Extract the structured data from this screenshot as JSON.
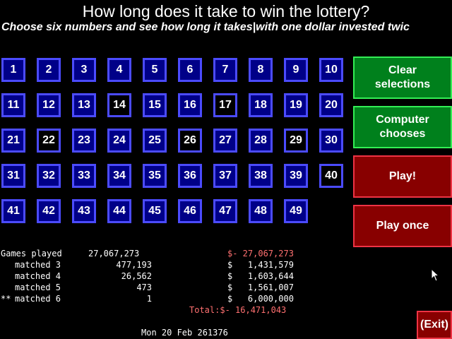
{
  "header": {
    "title": "How long does it take to win the lottery?",
    "subtitle": "Choose six numbers and see how long it takes|with one dollar invested twic"
  },
  "numbers": [
    {
      "label": "1",
      "selected": false
    },
    {
      "label": "2",
      "selected": false
    },
    {
      "label": "3",
      "selected": false
    },
    {
      "label": "4",
      "selected": false
    },
    {
      "label": "5",
      "selected": false
    },
    {
      "label": "6",
      "selected": false
    },
    {
      "label": "7",
      "selected": false
    },
    {
      "label": "8",
      "selected": false
    },
    {
      "label": "9",
      "selected": false
    },
    {
      "label": "10",
      "selected": false
    },
    {
      "label": "11",
      "selected": false
    },
    {
      "label": "12",
      "selected": false
    },
    {
      "label": "13",
      "selected": false
    },
    {
      "label": "14",
      "selected": true
    },
    {
      "label": "15",
      "selected": false
    },
    {
      "label": "16",
      "selected": false
    },
    {
      "label": "17",
      "selected": true
    },
    {
      "label": "18",
      "selected": false
    },
    {
      "label": "19",
      "selected": false
    },
    {
      "label": "20",
      "selected": false
    },
    {
      "label": "21",
      "selected": false
    },
    {
      "label": "22",
      "selected": true
    },
    {
      "label": "23",
      "selected": false
    },
    {
      "label": "24",
      "selected": false
    },
    {
      "label": "25",
      "selected": false
    },
    {
      "label": "26",
      "selected": true
    },
    {
      "label": "27",
      "selected": false
    },
    {
      "label": "28",
      "selected": false
    },
    {
      "label": "29",
      "selected": true
    },
    {
      "label": "30",
      "selected": false
    },
    {
      "label": "31",
      "selected": false
    },
    {
      "label": "32",
      "selected": false
    },
    {
      "label": "33",
      "selected": false
    },
    {
      "label": "34",
      "selected": false
    },
    {
      "label": "35",
      "selected": false
    },
    {
      "label": "36",
      "selected": false
    },
    {
      "label": "37",
      "selected": false
    },
    {
      "label": "38",
      "selected": false
    },
    {
      "label": "39",
      "selected": false
    },
    {
      "label": "40",
      "selected": true
    },
    {
      "label": "41",
      "selected": false
    },
    {
      "label": "42",
      "selected": false
    },
    {
      "label": "43",
      "selected": false
    },
    {
      "label": "44",
      "selected": false
    },
    {
      "label": "45",
      "selected": false
    },
    {
      "label": "46",
      "selected": false
    },
    {
      "label": "47",
      "selected": false
    },
    {
      "label": "48",
      "selected": false
    },
    {
      "label": "49",
      "selected": false
    }
  ],
  "buttons": {
    "clear": {
      "line1": "Clear",
      "line2": "selections"
    },
    "computer": {
      "line1": "Computer",
      "line2": "chooses"
    },
    "play": "Play!",
    "play_once": "Play once",
    "exit": "(Exit)"
  },
  "stats": {
    "games_played": {
      "label": "Games played",
      "count": "27,067,273",
      "amount": "$- 27,067,273"
    },
    "matched": [
      {
        "prefix": "",
        "label": "matched 3",
        "count": "477,193",
        "amount": "$   1,431,579"
      },
      {
        "prefix": "",
        "label": "matched 4",
        "count": "26,562",
        "amount": "$   1,603,644"
      },
      {
        "prefix": "",
        "label": "matched 5",
        "count": "473",
        "amount": "$   1,561,007"
      },
      {
        "prefix": "**",
        "label": "matched 6",
        "count": "1",
        "amount": "$   6,000,000"
      }
    ],
    "total": "Total:$- 16,471,043"
  },
  "date": "Mon 20 Feb 261376",
  "colors": {
    "number_fill": "#000088",
    "number_border": "#4b4bff",
    "green_button": "#00801c",
    "red_button": "#880000",
    "negative_text": "#ff7070"
  }
}
